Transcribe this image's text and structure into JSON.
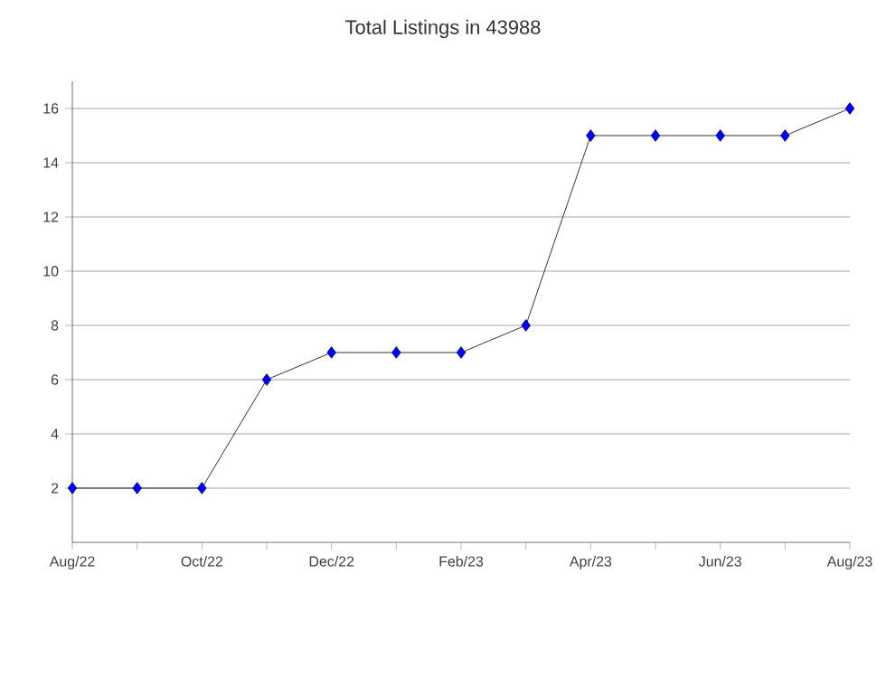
{
  "chart_data": {
    "type": "line",
    "title": "Total Listings in 43988",
    "x": [
      "2022-08",
      "2022-09",
      "2022-10",
      "2022-11",
      "2022-12",
      "2023-01",
      "2023-02",
      "2023-03",
      "2023-04",
      "2023-05",
      "2023-06",
      "2023-07",
      "2023-08"
    ],
    "series": [
      {
        "color": "#0000ff",
        "values": [
          2,
          2,
          2,
          6,
          7,
          7,
          7,
          8,
          15,
          15,
          15,
          15,
          16
        ]
      }
    ],
    "xlim": [
      "2022-08",
      "2023-08"
    ],
    "xticks": [
      {
        "value": "2022-08",
        "label": "Aug/22"
      },
      {
        "value": "2022-09",
        "label": null
      },
      {
        "value": "2022-10",
        "label": "Oct/22"
      },
      {
        "value": "2022-11",
        "label": null
      },
      {
        "value": "2022-12",
        "label": "Dec/22"
      },
      {
        "value": "2023-01",
        "label": null
      },
      {
        "value": "2023-02",
        "label": "Feb/23"
      },
      {
        "value": "2023-03",
        "label": null
      },
      {
        "value": "2023-04",
        "label": "Apr/23"
      },
      {
        "value": "2023-05",
        "label": null
      },
      {
        "value": "2023-06",
        "label": "Jun/23"
      },
      {
        "value": "2023-07",
        "label": null
      },
      {
        "value": "2023-08",
        "label": "Aug/23"
      }
    ],
    "ylim": [
      0,
      17
    ],
    "yticks": [
      2,
      4,
      6,
      8,
      10,
      12,
      14,
      16
    ],
    "grid": "y",
    "marker": "diamond",
    "line_style": "solid"
  }
}
